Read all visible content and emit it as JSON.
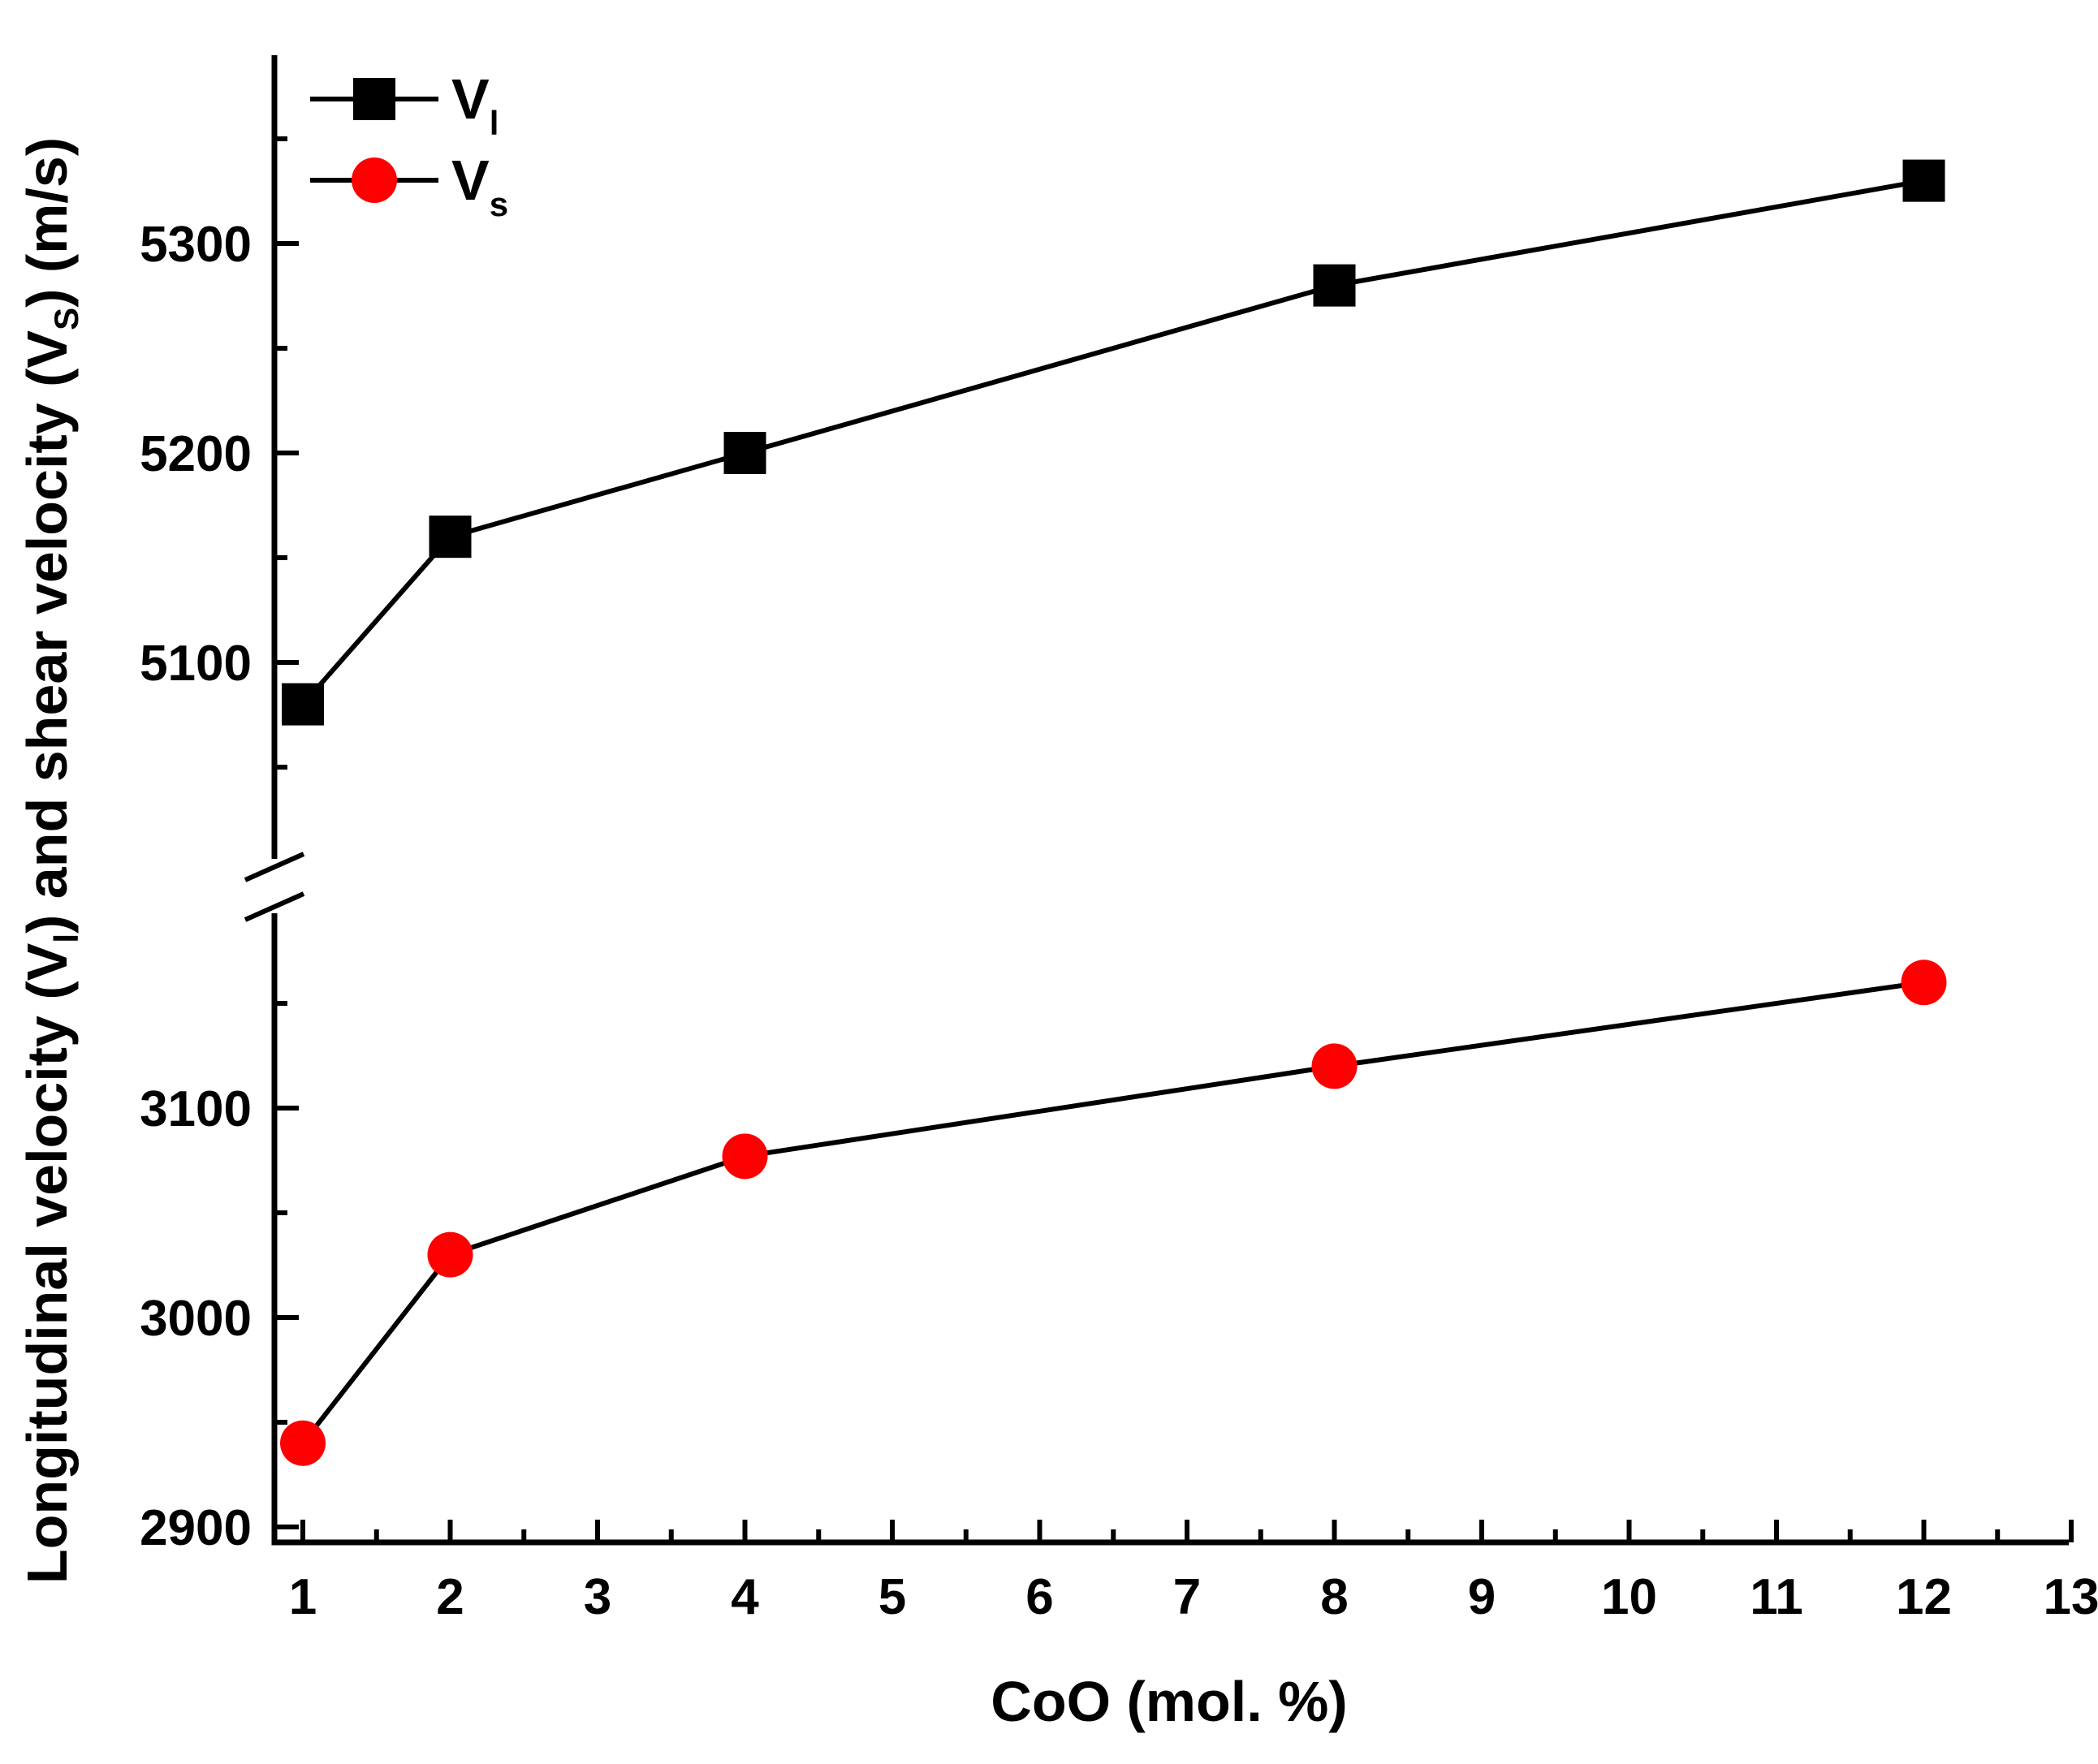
{
  "chart_data": {
    "type": "line",
    "title": "",
    "xlabel": "CoO (mol. %)",
    "ylabel": {
      "parts": [
        "Longitudinal velocity (V",
        "l",
        ") and shear velocity (V",
        "S",
        ") (m/s)"
      ]
    },
    "xlim": [
      0.8,
      13
    ],
    "x_ticks": [
      "1",
      "2",
      "3",
      "4",
      "5",
      "6",
      "7",
      "8",
      "9",
      "10",
      "11",
      "12",
      "13"
    ],
    "y_axis_break": true,
    "y_upper_segment": {
      "range": [
        5000,
        5390
      ],
      "ticks": [
        "5100",
        "5200",
        "5300"
      ]
    },
    "y_lower_segment": {
      "range": [
        2890,
        3200
      ],
      "ticks": [
        "2900",
        "3000",
        "3100"
      ]
    },
    "series": [
      {
        "name": "Vl",
        "legend_main": "V",
        "legend_sub": "l",
        "segment": "upper",
        "marker": "square",
        "color": "#000000",
        "x": [
          1,
          2,
          4,
          8,
          12
        ],
        "values": [
          5080,
          5160,
          5200,
          5280,
          5330
        ]
      },
      {
        "name": "Vs",
        "legend_main": "V",
        "legend_sub": "s",
        "segment": "lower",
        "marker": "circle",
        "color": "#ff0000",
        "x": [
          1,
          2,
          4,
          8,
          12
        ],
        "values": [
          2940,
          3030,
          3077,
          3120,
          3160
        ]
      }
    ],
    "legend_position": "top-left"
  }
}
